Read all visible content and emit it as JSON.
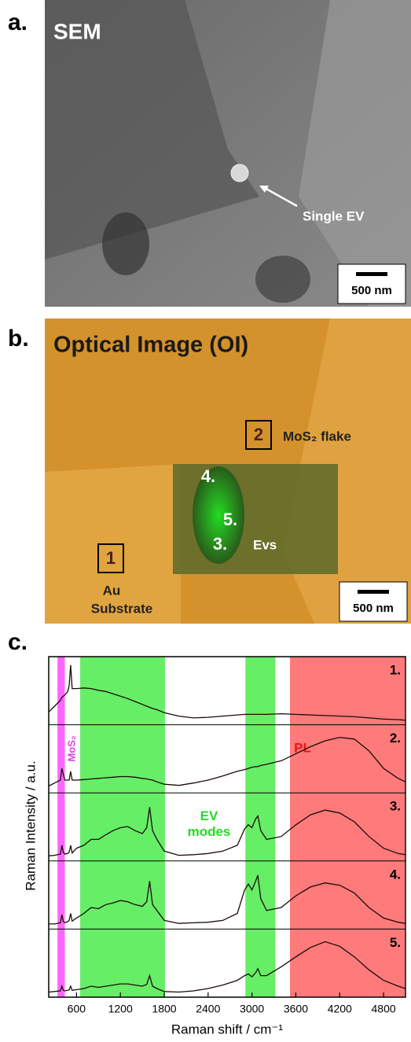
{
  "panel_a": {
    "label": "a.",
    "title": "SEM",
    "annotation": "Single EV",
    "scale_bar": "500 nm"
  },
  "panel_b": {
    "label": "b.",
    "title": "Optical Image (OI)",
    "markers": [
      "1",
      "2"
    ],
    "flake": "MoS₂ flake",
    "points": [
      "4.",
      "5.",
      "3."
    ],
    "evs": "Evs",
    "substrate_lines": [
      "Au",
      "Substrate"
    ],
    "scale_bar": "500 nm"
  },
  "chart_data": {
    "type": "line",
    "panel_label": "c.",
    "x_label": "Raman shift / cm⁻¹",
    "y_label": "Raman Intensity / a.u.",
    "xlim": [
      220,
      5100
    ],
    "xticks": [
      600,
      1200,
      1800,
      2400,
      3000,
      3600,
      4200,
      4800
    ],
    "ylim": [
      0,
      1
    ],
    "bands": [
      {
        "from": 340,
        "to": 440,
        "color": "#ff66ff",
        "label_lines": [
          "MoS₂"
        ]
      },
      {
        "from": 650,
        "to": 1810,
        "color": "#66ee66",
        "label_lines": [
          "EV",
          "modes"
        ]
      },
      {
        "from": 2910,
        "to": 3320,
        "color": "#66ee66"
      },
      {
        "from": 3520,
        "to": 5090,
        "color": "#ff7a7a",
        "label_lines": [
          "PL"
        ]
      }
    ],
    "x": [
      220,
      300,
      380,
      400,
      420,
      440,
      480,
      500,
      520,
      540,
      600,
      700,
      800,
      900,
      1000,
      1100,
      1200,
      1300,
      1400,
      1500,
      1560,
      1600,
      1640,
      1700,
      1800,
      2000,
      2200,
      2400,
      2600,
      2800,
      2900,
      2950,
      3000,
      3050,
      3080,
      3120,
      3200,
      3400,
      3600,
      3800,
      4000,
      4200,
      4400,
      4600,
      4800,
      5000,
      5100
    ],
    "series": [
      {
        "name": "1.",
        "color": "#1a0a0a",
        "values": [
          0.15,
          0.25,
          0.35,
          0.4,
          0.42,
          0.44,
          0.5,
          0.6,
          0.95,
          0.55,
          0.55,
          0.56,
          0.55,
          0.52,
          0.5,
          0.46,
          0.42,
          0.38,
          0.33,
          0.28,
          0.25,
          0.23,
          0.21,
          0.19,
          0.14,
          0.08,
          0.05,
          0.06,
          0.08,
          0.1,
          0.11,
          0.11,
          0.11,
          0.11,
          0.11,
          0.11,
          0.11,
          0.12,
          0.11,
          0.1,
          0.09,
          0.08,
          0.07,
          0.05,
          0.03,
          0.02,
          0.01
        ]
      },
      {
        "name": "2.",
        "color": "#1a0a0a",
        "values": [
          0.05,
          0.1,
          0.15,
          0.35,
          0.25,
          0.15,
          0.15,
          0.15,
          0.3,
          0.15,
          0.15,
          0.16,
          0.17,
          0.18,
          0.19,
          0.2,
          0.21,
          0.21,
          0.2,
          0.18,
          0.17,
          0.16,
          0.15,
          0.12,
          0.08,
          0.06,
          0.1,
          0.15,
          0.22,
          0.3,
          0.33,
          0.35,
          0.37,
          0.38,
          0.38,
          0.4,
          0.42,
          0.48,
          0.6,
          0.72,
          0.82,
          0.88,
          0.85,
          0.65,
          0.35,
          0.18,
          0.12
        ]
      },
      {
        "name": "3.",
        "color": "#1a0a0a",
        "values": [
          0.02,
          0.03,
          0.05,
          0.2,
          0.08,
          0.05,
          0.06,
          0.08,
          0.2,
          0.07,
          0.15,
          0.2,
          0.3,
          0.3,
          0.38,
          0.45,
          0.5,
          0.52,
          0.45,
          0.4,
          0.5,
          0.85,
          0.45,
          0.3,
          0.1,
          0.03,
          0.04,
          0.06,
          0.1,
          0.2,
          0.48,
          0.55,
          0.5,
          0.65,
          0.7,
          0.45,
          0.3,
          0.35,
          0.55,
          0.72,
          0.8,
          0.75,
          0.6,
          0.35,
          0.15,
          0.06,
          0.04
        ]
      },
      {
        "name": "4.",
        "color": "#1a0a0a",
        "values": [
          0.02,
          0.02,
          0.04,
          0.18,
          0.06,
          0.04,
          0.06,
          0.08,
          0.2,
          0.07,
          0.12,
          0.2,
          0.3,
          0.28,
          0.35,
          0.38,
          0.42,
          0.4,
          0.35,
          0.32,
          0.4,
          0.75,
          0.35,
          0.25,
          0.08,
          0.03,
          0.04,
          0.05,
          0.08,
          0.2,
          0.6,
          0.7,
          0.6,
          0.75,
          0.85,
          0.45,
          0.25,
          0.3,
          0.5,
          0.65,
          0.72,
          0.68,
          0.55,
          0.3,
          0.12,
          0.05,
          0.03
        ]
      },
      {
        "name": "5.",
        "color": "#1a0a0a",
        "values": [
          0.02,
          0.03,
          0.04,
          0.12,
          0.05,
          0.04,
          0.05,
          0.06,
          0.12,
          0.05,
          0.06,
          0.08,
          0.12,
          0.1,
          0.12,
          0.14,
          0.16,
          0.16,
          0.14,
          0.12,
          0.15,
          0.3,
          0.12,
          0.08,
          0.03,
          0.02,
          0.04,
          0.08,
          0.14,
          0.22,
          0.3,
          0.33,
          0.28,
          0.35,
          0.42,
          0.3,
          0.3,
          0.45,
          0.62,
          0.78,
          0.88,
          0.8,
          0.62,
          0.4,
          0.22,
          0.12,
          0.08
        ]
      }
    ]
  }
}
